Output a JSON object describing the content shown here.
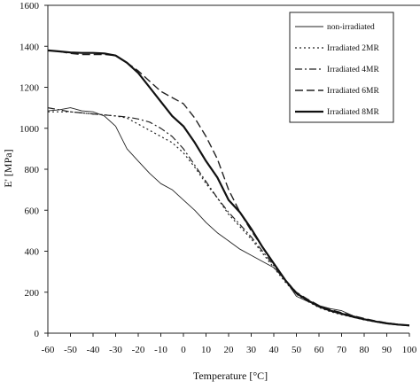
{
  "chart_data": {
    "type": "line",
    "title": "",
    "xlabel": "Temperature [°C]",
    "ylabel": "E' [MPa]",
    "xlim": [
      -60,
      100
    ],
    "ylim": [
      0,
      1600
    ],
    "xticks": [
      -60,
      -50,
      -40,
      -30,
      -20,
      -10,
      0,
      10,
      20,
      30,
      40,
      50,
      60,
      70,
      80,
      90,
      100
    ],
    "yticks": [
      0,
      200,
      400,
      600,
      800,
      1000,
      1200,
      1400,
      1600
    ],
    "grid": false,
    "legend_position": "top-right",
    "series": [
      {
        "name": "non-irradiated",
        "style": "solid-thin",
        "color": "#222222",
        "points": [
          [
            -60,
            1085
          ],
          [
            -55,
            1090
          ],
          [
            -50,
            1100
          ],
          [
            -45,
            1085
          ],
          [
            -40,
            1080
          ],
          [
            -35,
            1060
          ],
          [
            -30,
            1010
          ],
          [
            -25,
            900
          ],
          [
            -20,
            840
          ],
          [
            -15,
            780
          ],
          [
            -10,
            730
          ],
          [
            -5,
            700
          ],
          [
            0,
            650
          ],
          [
            5,
            600
          ],
          [
            10,
            540
          ],
          [
            15,
            490
          ],
          [
            20,
            450
          ],
          [
            25,
            410
          ],
          [
            30,
            380
          ],
          [
            35,
            350
          ],
          [
            40,
            320
          ],
          [
            45,
            260
          ],
          [
            50,
            180
          ],
          [
            55,
            155
          ],
          [
            60,
            135
          ],
          [
            65,
            120
          ],
          [
            70,
            110
          ],
          [
            75,
            85
          ],
          [
            80,
            70
          ],
          [
            85,
            55
          ],
          [
            90,
            45
          ],
          [
            95,
            40
          ],
          [
            100,
            35
          ]
        ]
      },
      {
        "name": "Irradiated 2MR",
        "style": "dotted",
        "color": "#222222",
        "points": [
          [
            -60,
            1080
          ],
          [
            -55,
            1080
          ],
          [
            -50,
            1080
          ],
          [
            -45,
            1075
          ],
          [
            -40,
            1070
          ],
          [
            -35,
            1065
          ],
          [
            -30,
            1060
          ],
          [
            -25,
            1050
          ],
          [
            -20,
            1020
          ],
          [
            -15,
            990
          ],
          [
            -10,
            960
          ],
          [
            -5,
            930
          ],
          [
            0,
            880
          ],
          [
            5,
            810
          ],
          [
            10,
            730
          ],
          [
            15,
            660
          ],
          [
            20,
            580
          ],
          [
            25,
            520
          ],
          [
            30,
            460
          ],
          [
            35,
            390
          ],
          [
            40,
            320
          ],
          [
            45,
            250
          ],
          [
            50,
            190
          ],
          [
            55,
            155
          ],
          [
            60,
            125
          ],
          [
            65,
            105
          ],
          [
            70,
            90
          ],
          [
            75,
            78
          ],
          [
            80,
            65
          ],
          [
            85,
            55
          ],
          [
            90,
            48
          ],
          [
            95,
            42
          ],
          [
            100,
            38
          ]
        ]
      },
      {
        "name": "Irradiated 4MR",
        "style": "dash-dot",
        "color": "#222222",
        "points": [
          [
            -60,
            1100
          ],
          [
            -55,
            1090
          ],
          [
            -50,
            1080
          ],
          [
            -45,
            1075
          ],
          [
            -40,
            1070
          ],
          [
            -35,
            1065
          ],
          [
            -30,
            1060
          ],
          [
            -25,
            1055
          ],
          [
            -20,
            1045
          ],
          [
            -15,
            1030
          ],
          [
            -10,
            1000
          ],
          [
            -5,
            960
          ],
          [
            0,
            900
          ],
          [
            5,
            820
          ],
          [
            10,
            740
          ],
          [
            15,
            660
          ],
          [
            20,
            590
          ],
          [
            25,
            530
          ],
          [
            30,
            470
          ],
          [
            35,
            400
          ],
          [
            40,
            330
          ],
          [
            45,
            260
          ],
          [
            50,
            195
          ],
          [
            55,
            160
          ],
          [
            60,
            130
          ],
          [
            65,
            110
          ],
          [
            70,
            95
          ],
          [
            75,
            80
          ],
          [
            80,
            68
          ],
          [
            85,
            57
          ],
          [
            90,
            48
          ],
          [
            95,
            42
          ],
          [
            100,
            38
          ]
        ]
      },
      {
        "name": "Irradiated 6MR",
        "style": "dashed",
        "color": "#222222",
        "points": [
          [
            -60,
            1380
          ],
          [
            -55,
            1375
          ],
          [
            -50,
            1365
          ],
          [
            -45,
            1360
          ],
          [
            -40,
            1360
          ],
          [
            -35,
            1360
          ],
          [
            -30,
            1355
          ],
          [
            -25,
            1320
          ],
          [
            -20,
            1280
          ],
          [
            -15,
            1230
          ],
          [
            -10,
            1180
          ],
          [
            -5,
            1150
          ],
          [
            0,
            1120
          ],
          [
            5,
            1050
          ],
          [
            10,
            960
          ],
          [
            15,
            850
          ],
          [
            20,
            700
          ],
          [
            25,
            590
          ],
          [
            30,
            500
          ],
          [
            35,
            420
          ],
          [
            40,
            340
          ],
          [
            45,
            260
          ],
          [
            50,
            200
          ],
          [
            55,
            165
          ],
          [
            60,
            135
          ],
          [
            65,
            115
          ],
          [
            70,
            100
          ],
          [
            75,
            85
          ],
          [
            80,
            72
          ],
          [
            85,
            60
          ],
          [
            90,
            50
          ],
          [
            95,
            43
          ],
          [
            100,
            38
          ]
        ]
      },
      {
        "name": "Irradiated 8MR",
        "style": "solid-thick",
        "color": "#111111",
        "points": [
          [
            -60,
            1380
          ],
          [
            -55,
            1375
          ],
          [
            -50,
            1370
          ],
          [
            -45,
            1368
          ],
          [
            -40,
            1368
          ],
          [
            -35,
            1365
          ],
          [
            -30,
            1355
          ],
          [
            -25,
            1320
          ],
          [
            -20,
            1270
          ],
          [
            -15,
            1200
          ],
          [
            -10,
            1130
          ],
          [
            -5,
            1060
          ],
          [
            0,
            1010
          ],
          [
            5,
            930
          ],
          [
            10,
            840
          ],
          [
            15,
            760
          ],
          [
            20,
            650
          ],
          [
            25,
            590
          ],
          [
            30,
            510
          ],
          [
            35,
            420
          ],
          [
            40,
            340
          ],
          [
            45,
            260
          ],
          [
            50,
            195
          ],
          [
            55,
            160
          ],
          [
            60,
            130
          ],
          [
            65,
            110
          ],
          [
            70,
            95
          ],
          [
            75,
            80
          ],
          [
            80,
            68
          ],
          [
            85,
            57
          ],
          [
            90,
            48
          ],
          [
            95,
            42
          ],
          [
            100,
            38
          ]
        ]
      }
    ]
  }
}
